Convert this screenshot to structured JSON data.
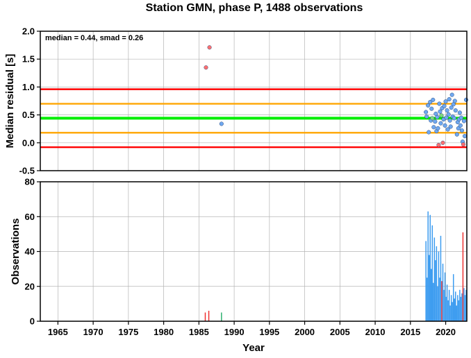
{
  "title": "Station GMN, phase P, 1488 observations",
  "colors": {
    "median_line": "#00ee00",
    "smad_line": "#ffa500",
    "outer_line": "#ff0000",
    "point_blue": "#6fa8f0",
    "point_red": "#ff7070",
    "point_green": "#7cd87c",
    "bar_blue": "#3c9cf0",
    "bar_red": "#ee3030",
    "bar_green": "#30b070"
  },
  "chart_data": [
    {
      "type": "scatter",
      "title": "Station GMN, phase P, 1488 observations",
      "ylabel": "Median residual [s]",
      "xlabel": "",
      "annotation": "median = 0.44, smad = 0.26",
      "xlim": [
        1962.5,
        2023.0
      ],
      "ylim": [
        -0.5,
        2.0
      ],
      "yticks": [
        "-0.5",
        "0.0",
        "0.5",
        "1.0",
        "1.5",
        "2.0"
      ],
      "grid": true,
      "hlines": [
        {
          "y": 0.44,
          "color": "green"
        },
        {
          "y": 0.18,
          "color": "orange"
        },
        {
          "y": 0.7,
          "color": "orange"
        },
        {
          "y": -0.08,
          "color": "red"
        },
        {
          "y": 0.96,
          "color": "red"
        }
      ],
      "points": [
        {
          "x": 1986.0,
          "y": 1.35,
          "c": "red"
        },
        {
          "x": 1986.5,
          "y": 1.71,
          "c": "red"
        },
        {
          "x": 1988.2,
          "y": 0.34,
          "c": "blue"
        },
        {
          "x": 2017.2,
          "y": 0.55,
          "c": "blue"
        },
        {
          "x": 2017.3,
          "y": 0.47,
          "c": "blue"
        },
        {
          "x": 2017.5,
          "y": 0.67,
          "c": "blue"
        },
        {
          "x": 2017.6,
          "y": 0.19,
          "c": "blue"
        },
        {
          "x": 2017.8,
          "y": 0.73,
          "c": "blue"
        },
        {
          "x": 2017.9,
          "y": 0.4,
          "c": "blue"
        },
        {
          "x": 2018.0,
          "y": 0.61,
          "c": "blue"
        },
        {
          "x": 2018.1,
          "y": 0.44,
          "c": "green"
        },
        {
          "x": 2018.2,
          "y": 0.77,
          "c": "blue"
        },
        {
          "x": 2018.3,
          "y": 0.28,
          "c": "blue"
        },
        {
          "x": 2018.5,
          "y": 0.38,
          "c": "blue"
        },
        {
          "x": 2018.6,
          "y": 0.52,
          "c": "blue"
        },
        {
          "x": 2018.7,
          "y": 0.21,
          "c": "blue"
        },
        {
          "x": 2018.8,
          "y": 0.46,
          "c": "blue"
        },
        {
          "x": 2018.9,
          "y": 0.26,
          "c": "blue"
        },
        {
          "x": 2019.0,
          "y": -0.04,
          "c": "red"
        },
        {
          "x": 2019.1,
          "y": 0.7,
          "c": "blue"
        },
        {
          "x": 2019.2,
          "y": 0.56,
          "c": "blue"
        },
        {
          "x": 2019.3,
          "y": 0.35,
          "c": "blue"
        },
        {
          "x": 2019.4,
          "y": 0.49,
          "c": "green"
        },
        {
          "x": 2019.5,
          "y": 0.62,
          "c": "blue"
        },
        {
          "x": 2019.6,
          "y": 0.0,
          "c": "red"
        },
        {
          "x": 2019.7,
          "y": 0.42,
          "c": "blue"
        },
        {
          "x": 2019.8,
          "y": 0.66,
          "c": "blue"
        },
        {
          "x": 2019.9,
          "y": 0.31,
          "c": "blue"
        },
        {
          "x": 2020.0,
          "y": 0.74,
          "c": "blue"
        },
        {
          "x": 2020.1,
          "y": 0.45,
          "c": "blue"
        },
        {
          "x": 2020.2,
          "y": 0.58,
          "c": "blue"
        },
        {
          "x": 2020.3,
          "y": 0.24,
          "c": "blue"
        },
        {
          "x": 2020.4,
          "y": 0.51,
          "c": "blue"
        },
        {
          "x": 2020.5,
          "y": 0.78,
          "c": "blue"
        },
        {
          "x": 2020.6,
          "y": 0.4,
          "c": "blue"
        },
        {
          "x": 2020.7,
          "y": 0.29,
          "c": "blue"
        },
        {
          "x": 2020.8,
          "y": 0.63,
          "c": "blue"
        },
        {
          "x": 2020.9,
          "y": 0.86,
          "c": "blue"
        },
        {
          "x": 2021.0,
          "y": 0.47,
          "c": "blue"
        },
        {
          "x": 2021.1,
          "y": 0.69,
          "c": "blue"
        },
        {
          "x": 2021.2,
          "y": 0.44,
          "c": "blue"
        },
        {
          "x": 2021.3,
          "y": 0.75,
          "c": "blue"
        },
        {
          "x": 2021.4,
          "y": 0.58,
          "c": "blue"
        },
        {
          "x": 2021.6,
          "y": 0.15,
          "c": "blue"
        },
        {
          "x": 2021.7,
          "y": 0.37,
          "c": "blue"
        },
        {
          "x": 2021.8,
          "y": 0.26,
          "c": "blue"
        },
        {
          "x": 2021.9,
          "y": 0.42,
          "c": "blue"
        },
        {
          "x": 2022.0,
          "y": 0.54,
          "c": "blue"
        },
        {
          "x": 2022.1,
          "y": 0.31,
          "c": "blue"
        },
        {
          "x": 2022.2,
          "y": 0.45,
          "c": "blue"
        },
        {
          "x": 2022.3,
          "y": 0.22,
          "c": "blue"
        },
        {
          "x": 2022.4,
          "y": 0.02,
          "c": "blue"
        },
        {
          "x": 2022.5,
          "y": -0.03,
          "c": "red"
        },
        {
          "x": 2022.6,
          "y": 0.39,
          "c": "blue"
        },
        {
          "x": 2022.7,
          "y": 0.12,
          "c": "blue"
        },
        {
          "x": 2022.9,
          "y": 0.77,
          "c": "blue"
        }
      ]
    },
    {
      "type": "bar",
      "xlabel": "Year",
      "ylabel": "Observations",
      "xlim": [
        1962.5,
        2023.0
      ],
      "ylim": [
        0,
        80
      ],
      "xticks": [
        "1965",
        "1970",
        "1975",
        "1980",
        "1985",
        "1990",
        "1995",
        "2000",
        "2005",
        "2010",
        "2015",
        "2020"
      ],
      "yticks": [
        "0",
        "20",
        "40",
        "60",
        "80"
      ],
      "grid": true,
      "bars": [
        {
          "x": 1985.9,
          "y": 5,
          "c": "red"
        },
        {
          "x": 1986.4,
          "y": 6,
          "c": "red"
        },
        {
          "x": 1988.2,
          "y": 5,
          "c": "green"
        },
        {
          "x": 2017.2,
          "y": 46,
          "c": "blue"
        },
        {
          "x": 2017.35,
          "y": 25,
          "c": "blue"
        },
        {
          "x": 2017.5,
          "y": 63,
          "c": "blue"
        },
        {
          "x": 2017.65,
          "y": 38,
          "c": "blue"
        },
        {
          "x": 2017.8,
          "y": 61,
          "c": "blue"
        },
        {
          "x": 2017.95,
          "y": 30,
          "c": "blue"
        },
        {
          "x": 2018.1,
          "y": 55,
          "c": "blue"
        },
        {
          "x": 2018.25,
          "y": 22,
          "c": "blue"
        },
        {
          "x": 2018.4,
          "y": 48,
          "c": "blue"
        },
        {
          "x": 2018.55,
          "y": 35,
          "c": "blue"
        },
        {
          "x": 2018.7,
          "y": 43,
          "c": "blue"
        },
        {
          "x": 2018.85,
          "y": 20,
          "c": "blue"
        },
        {
          "x": 2019.0,
          "y": 40,
          "c": "blue"
        },
        {
          "x": 2019.15,
          "y": 25,
          "c": "blue"
        },
        {
          "x": 2019.3,
          "y": 49,
          "c": "blue"
        },
        {
          "x": 2019.45,
          "y": 23,
          "c": "red"
        },
        {
          "x": 2019.6,
          "y": 33,
          "c": "blue"
        },
        {
          "x": 2019.75,
          "y": 18,
          "c": "blue"
        },
        {
          "x": 2019.9,
          "y": 28,
          "c": "blue"
        },
        {
          "x": 2020.05,
          "y": 14,
          "c": "blue"
        },
        {
          "x": 2020.2,
          "y": 21,
          "c": "blue"
        },
        {
          "x": 2020.35,
          "y": 12,
          "c": "blue"
        },
        {
          "x": 2020.5,
          "y": 18,
          "c": "blue"
        },
        {
          "x": 2020.65,
          "y": 9,
          "c": "blue"
        },
        {
          "x": 2020.8,
          "y": 15,
          "c": "blue"
        },
        {
          "x": 2020.95,
          "y": 11,
          "c": "blue"
        },
        {
          "x": 2021.1,
          "y": 27,
          "c": "blue"
        },
        {
          "x": 2021.25,
          "y": 13,
          "c": "blue"
        },
        {
          "x": 2021.4,
          "y": 17,
          "c": "blue"
        },
        {
          "x": 2021.55,
          "y": 9,
          "c": "blue"
        },
        {
          "x": 2021.7,
          "y": 15,
          "c": "blue"
        },
        {
          "x": 2021.85,
          "y": 12,
          "c": "blue"
        },
        {
          "x": 2022.0,
          "y": 18,
          "c": "blue"
        },
        {
          "x": 2022.15,
          "y": 14,
          "c": "blue"
        },
        {
          "x": 2022.3,
          "y": 16,
          "c": "blue"
        },
        {
          "x": 2022.45,
          "y": 51,
          "c": "red"
        },
        {
          "x": 2022.6,
          "y": 19,
          "c": "blue"
        },
        {
          "x": 2022.75,
          "y": 15,
          "c": "blue"
        },
        {
          "x": 2022.9,
          "y": 18,
          "c": "blue"
        }
      ]
    }
  ]
}
